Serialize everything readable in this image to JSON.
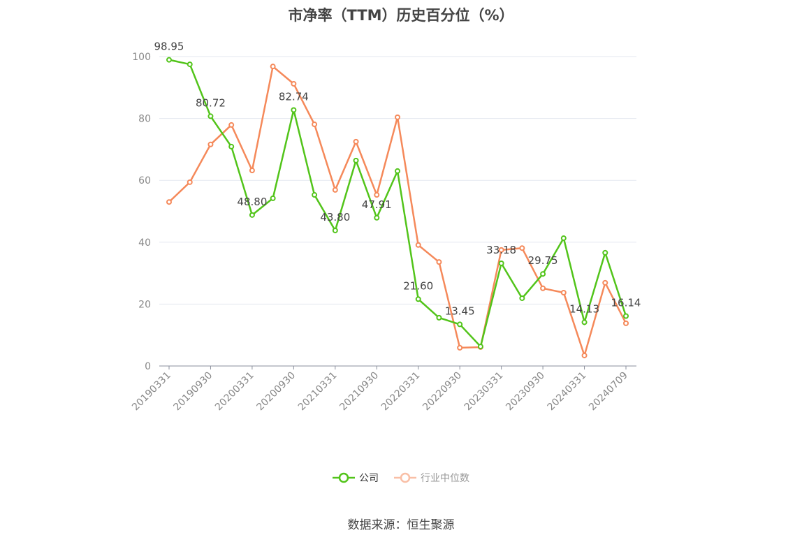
{
  "chart_data": {
    "type": "line",
    "title": "市净率（TTM）历史百分位（%）",
    "ylim": [
      0,
      100
    ],
    "yticks": [
      0,
      20,
      40,
      60,
      80,
      100
    ],
    "xtick_labels": [
      "20190331",
      "20190930",
      "20200331",
      "20200930",
      "20210331",
      "20210930",
      "20220331",
      "20220930",
      "20230331",
      "20230930",
      "20240331",
      "20240709"
    ],
    "xtick_indices": [
      0,
      2,
      4,
      6,
      8,
      10,
      12,
      14,
      16,
      18,
      20,
      22
    ],
    "point_count": 23,
    "series": [
      {
        "name": "公司",
        "color": "#52c41a",
        "values": [
          98.95,
          97.5,
          80.72,
          70.9,
          48.8,
          54.2,
          82.74,
          55.3,
          43.8,
          66.4,
          47.91,
          63.0,
          21.6,
          15.6,
          13.45,
          6.3,
          33.18,
          21.9,
          29.75,
          41.3,
          14.13,
          36.6,
          16.14
        ],
        "labels": {
          "0": "98.95",
          "2": "80.72",
          "4": "48.80",
          "6": "82.74",
          "8": "43.80",
          "10": "47.91",
          "12": "21.60",
          "14": "13.45",
          "16": "33.18",
          "18": "29.75",
          "20": "14.13",
          "22": "16.14"
        }
      },
      {
        "name": "行业中位数",
        "color": "#f5895a",
        "values": [
          53.0,
          59.4,
          71.6,
          77.9,
          63.2,
          96.8,
          91.2,
          78.1,
          56.9,
          72.5,
          55.3,
          80.4,
          39.1,
          33.6,
          5.9,
          6.1,
          37.5,
          38.1,
          25.1,
          23.7,
          3.4,
          26.9,
          13.8
        ]
      }
    ],
    "grid": true,
    "legend_position": "bottom"
  },
  "source": "数据来源：恒生聚源"
}
